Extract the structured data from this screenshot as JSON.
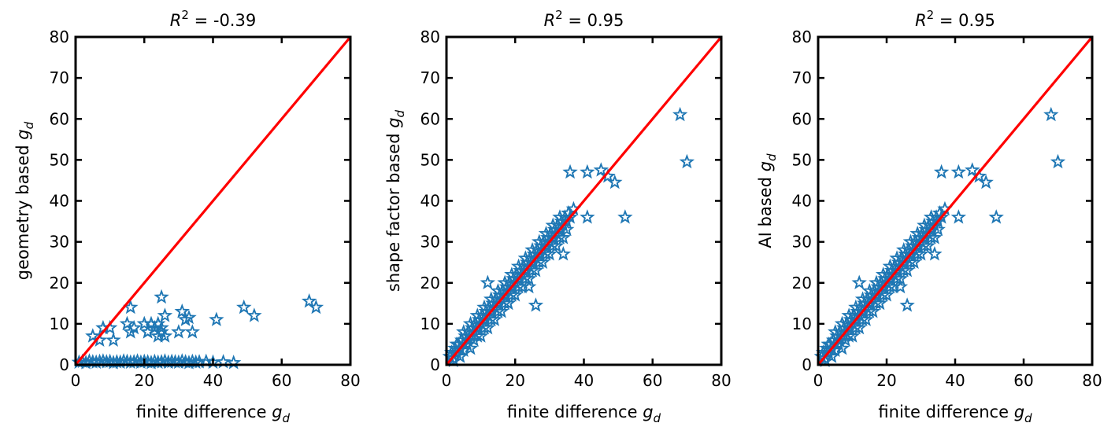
{
  "chart_data": [
    {
      "type": "scatter",
      "title": "R² = -0.39",
      "xlabel": "finite difference g_d",
      "ylabel": "geometry based g_d",
      "xlim": [
        0,
        80
      ],
      "ylim": [
        0,
        80
      ],
      "xticks": [
        0,
        20,
        40,
        60,
        80
      ],
      "yticks": [
        0,
        10,
        20,
        30,
        40,
        50,
        60,
        70,
        80
      ],
      "marker": "star-open",
      "marker_color": "#1f77b4",
      "reference_line": {
        "from": [
          0,
          0
        ],
        "to": [
          80,
          80
        ],
        "color": "#ff0000"
      },
      "series": [
        {
          "x": [
            1,
            2,
            3,
            4,
            5,
            6,
            7,
            8,
            9,
            10,
            11,
            12,
            13,
            14,
            15,
            16,
            17,
            18,
            19,
            20,
            21,
            22,
            23,
            24,
            25,
            26,
            27,
            28,
            29,
            30,
            31,
            32,
            33,
            34,
            35,
            36,
            38,
            40,
            43,
            46,
            5,
            7,
            8,
            10,
            11,
            15,
            16,
            17,
            20,
            21,
            22,
            23,
            24,
            24,
            25,
            25,
            26,
            26,
            30,
            31,
            32,
            34,
            16,
            21,
            25,
            33,
            41,
            49,
            52,
            68,
            70
          ],
          "y": [
            0.6,
            0.8,
            0.5,
            0.9,
            0.7,
            0.6,
            0.8,
            0.9,
            0.7,
            0.8,
            0.5,
            0.7,
            0.6,
            0.9,
            0.8,
            0.6,
            0.7,
            0.9,
            0.6,
            0.8,
            0.7,
            0.5,
            0.8,
            0.6,
            0.7,
            0.9,
            0.6,
            0.8,
            0.7,
            0.6,
            0.9,
            0.7,
            0.5,
            0.8,
            0.6,
            0.7,
            0.8,
            0.6,
            0.7,
            0.5,
            7,
            6,
            9,
            9,
            6,
            10,
            8,
            9,
            10,
            8,
            10,
            9,
            7,
            10,
            8,
            9,
            12,
            7,
            8,
            13,
            11,
            8,
            14,
            8,
            16.5,
            11.5,
            11,
            14,
            12,
            15.5,
            14
          ]
        }
      ]
    },
    {
      "type": "scatter",
      "title": "R² = 0.95",
      "xlabel": "finite difference g_d",
      "ylabel": "shape factor based g_d",
      "xlim": [
        0,
        80
      ],
      "ylim": [
        0,
        80
      ],
      "xticks": [
        0,
        20,
        40,
        60,
        80
      ],
      "yticks": [
        0,
        10,
        20,
        30,
        40,
        50,
        60,
        70,
        80
      ],
      "marker": "star-open",
      "marker_color": "#1f77b4",
      "reference_line": {
        "from": [
          0,
          0
        ],
        "to": [
          80,
          80
        ],
        "color": "#ff0000"
      },
      "series": [
        {
          "x": [
            1,
            1.5,
            2,
            2.5,
            3,
            3.5,
            4,
            4.5,
            5,
            5.5,
            6,
            6.5,
            7,
            7.5,
            8,
            8.5,
            9,
            9.5,
            10,
            10.5,
            11,
            11.5,
            12,
            12.5,
            13,
            13.5,
            14,
            14.5,
            15,
            15.5,
            16,
            16.5,
            17,
            17.5,
            18,
            18.5,
            19,
            19.5,
            20,
            20.5,
            21,
            21.5,
            22,
            22.5,
            23,
            23.5,
            24,
            24.5,
            25,
            25.5,
            26,
            26.5,
            27,
            27.5,
            28,
            28.5,
            29,
            29.5,
            30,
            30.5,
            31,
            31.5,
            32,
            32.5,
            33,
            33.5,
            34,
            34.5,
            35,
            35.5,
            36,
            37,
            2,
            3,
            4,
            5,
            6,
            7,
            8,
            9,
            10,
            11,
            12,
            13,
            14,
            15,
            16,
            17,
            18,
            19,
            20,
            21,
            22,
            23,
            24,
            25,
            26,
            27,
            28,
            29,
            30,
            31,
            32,
            33,
            34,
            35,
            3,
            5,
            7,
            9,
            11,
            13,
            15,
            17,
            19,
            21,
            23,
            25,
            27,
            29,
            31,
            33,
            12,
            18,
            24,
            26,
            34,
            36,
            41,
            45,
            47,
            49,
            41,
            52,
            68,
            70
          ],
          "y": [
            2,
            3,
            1.5,
            4,
            3,
            5,
            4,
            6,
            5,
            7,
            6,
            8,
            7,
            9,
            8,
            10,
            9,
            11,
            10,
            12,
            11,
            13,
            12,
            14,
            13,
            15,
            14,
            16,
            15,
            17,
            16,
            18,
            17,
            19,
            18,
            20,
            19,
            21,
            20,
            22,
            21,
            23,
            22,
            24,
            23,
            25,
            24,
            26,
            25,
            27,
            26,
            28,
            27,
            29,
            28,
            30,
            29,
            31,
            30,
            32,
            31,
            33,
            32,
            34,
            33,
            35,
            34,
            36,
            35,
            37,
            36,
            38,
            1,
            3,
            2,
            3.5,
            5,
            4,
            6,
            7,
            7,
            9,
            9,
            11,
            11,
            13,
            13,
            15,
            15,
            17,
            17,
            19,
            19,
            21,
            21,
            23,
            23,
            25,
            25,
            27,
            27,
            29,
            29,
            31,
            31,
            33,
            5,
            8,
            10,
            12,
            14,
            16,
            18,
            20,
            22,
            24,
            26,
            28,
            30,
            32,
            34,
            36,
            20,
            15,
            19,
            14.5,
            27,
            47,
            47,
            47.5,
            46,
            44.5,
            36,
            36,
            61,
            49.5
          ]
        }
      ]
    },
    {
      "type": "scatter",
      "title": "R² = 0.95",
      "xlabel": "finite difference g_d",
      "ylabel": "AI based g_d",
      "xlim": [
        0,
        80
      ],
      "ylim": [
        0,
        80
      ],
      "xticks": [
        0,
        20,
        40,
        60,
        80
      ],
      "yticks": [
        0,
        10,
        20,
        30,
        40,
        50,
        60,
        70,
        80
      ],
      "marker": "star-open",
      "marker_color": "#1f77b4",
      "reference_line": {
        "from": [
          0,
          0
        ],
        "to": [
          80,
          80
        ],
        "color": "#ff0000"
      },
      "series": [
        {
          "x": [
            1,
            1.5,
            2,
            2.5,
            3,
            3.5,
            4,
            4.5,
            5,
            5.5,
            6,
            6.5,
            7,
            7.5,
            8,
            8.5,
            9,
            9.5,
            10,
            10.5,
            11,
            11.5,
            12,
            12.5,
            13,
            13.5,
            14,
            14.5,
            15,
            15.5,
            16,
            16.5,
            17,
            17.5,
            18,
            18.5,
            19,
            19.5,
            20,
            20.5,
            21,
            21.5,
            22,
            22.5,
            23,
            23.5,
            24,
            24.5,
            25,
            25.5,
            26,
            26.5,
            27,
            27.5,
            28,
            28.5,
            29,
            29.5,
            30,
            30.5,
            31,
            31.5,
            32,
            32.5,
            33,
            33.5,
            34,
            34.5,
            35,
            35.5,
            36,
            37,
            2,
            3,
            4,
            5,
            6,
            7,
            8,
            9,
            10,
            11,
            12,
            13,
            14,
            15,
            16,
            17,
            18,
            19,
            20,
            21,
            22,
            23,
            24,
            25,
            26,
            27,
            28,
            29,
            30,
            31,
            32,
            33,
            34,
            35,
            3,
            5,
            7,
            9,
            11,
            13,
            15,
            17,
            19,
            21,
            23,
            25,
            27,
            29,
            31,
            33,
            12,
            18,
            24,
            26,
            34,
            36,
            41,
            45,
            47,
            49,
            41,
            52,
            68,
            70
          ],
          "y": [
            2,
            3,
            1.5,
            4,
            3,
            5,
            4,
            6,
            5,
            7,
            6,
            8,
            7,
            9,
            8,
            10,
            9,
            11,
            10,
            12,
            11,
            13,
            12,
            14,
            13,
            15,
            14,
            16,
            15,
            17,
            16,
            18,
            17,
            19,
            18,
            20,
            19,
            21,
            20,
            22,
            21,
            23,
            22,
            24,
            23,
            25,
            24,
            26,
            25,
            27,
            26,
            28,
            27,
            29,
            28,
            30,
            29,
            31,
            30,
            32,
            31,
            33,
            32,
            34,
            33,
            35,
            34,
            36,
            35,
            37,
            36,
            38,
            1,
            3,
            2,
            3.5,
            5,
            4,
            6,
            7,
            7,
            9,
            9,
            11,
            11,
            13,
            13,
            15,
            15,
            17,
            17,
            19,
            19,
            21,
            21,
            23,
            23,
            25,
            25,
            27,
            27,
            29,
            29,
            31,
            31,
            33,
            5,
            8,
            10,
            12,
            14,
            16,
            18,
            20,
            22,
            24,
            26,
            28,
            30,
            32,
            34,
            36,
            20,
            15,
            19,
            14.5,
            27,
            47,
            47,
            47.5,
            46,
            44.5,
            36,
            36,
            61,
            49.5
          ]
        }
      ]
    }
  ]
}
